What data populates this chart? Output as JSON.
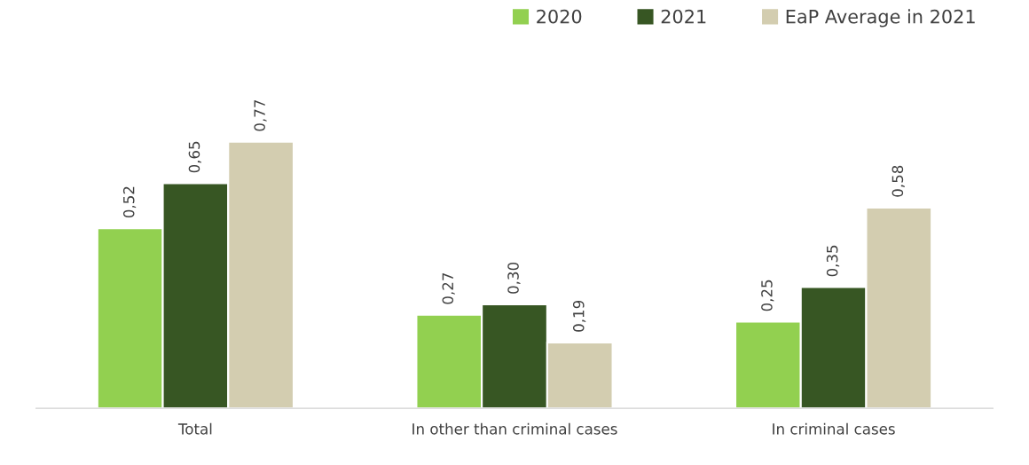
{
  "chart_data": {
    "type": "bar",
    "categories": [
      "Total",
      "In other than criminal cases",
      "In criminal cases"
    ],
    "series": [
      {
        "name": "2020",
        "color": "#92d050",
        "values": [
          0.52,
          0.27,
          0.25
        ],
        "value_labels": [
          "0,52",
          "0,27",
          "0,25"
        ]
      },
      {
        "name": "2021",
        "color": "#375623",
        "values": [
          0.65,
          0.3,
          0.35
        ],
        "value_labels": [
          "0,65",
          "0,30",
          "0,35"
        ]
      },
      {
        "name": "EaP Average in 2021",
        "color": "#d3cdb0",
        "values": [
          0.77,
          0.19,
          0.58
        ],
        "value_labels": [
          "0,77",
          "0,19",
          "0,58"
        ]
      }
    ],
    "legend": "top right",
    "grid": false
  }
}
